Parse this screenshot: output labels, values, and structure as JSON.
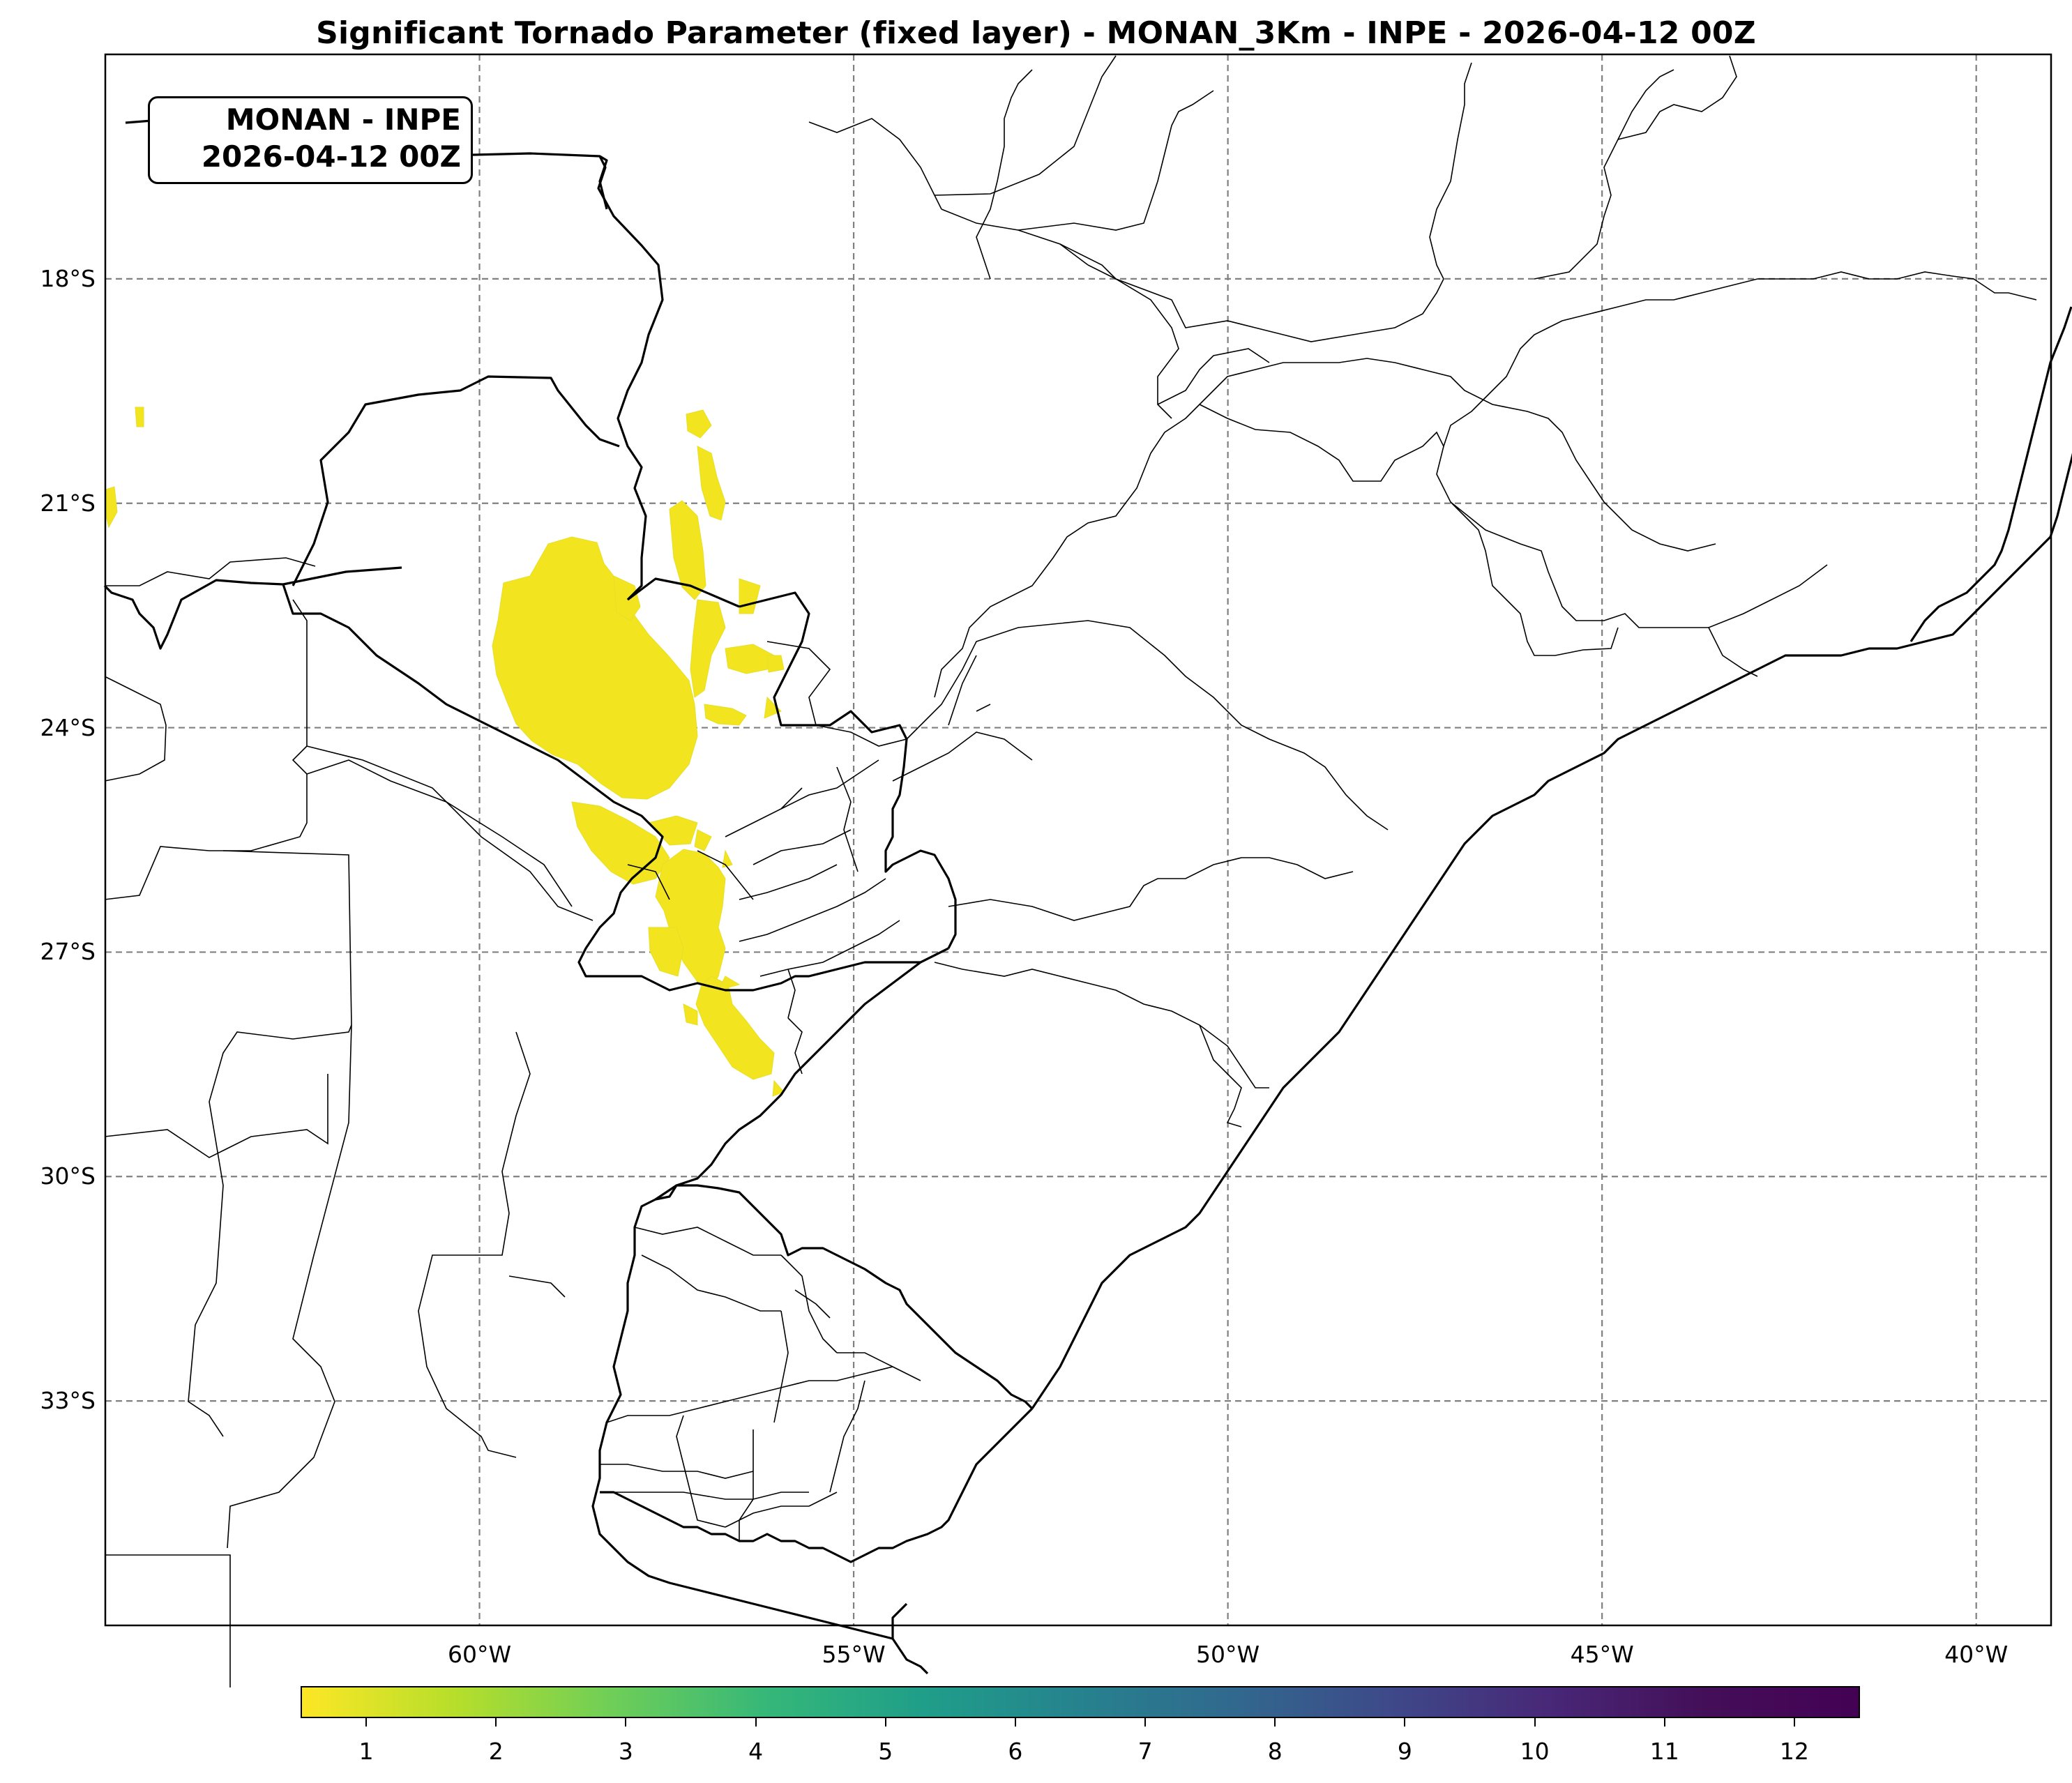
{
  "title": "Significant Tornado Parameter (fixed layer) - MONAN_3Km - INPE - 2026-04-12 00Z",
  "info_box": {
    "line1": "MONAN - INPE",
    "line2": "2026-04-12 00Z"
  },
  "map": {
    "lon_range": [
      -65.0,
      -39.0
    ],
    "lat_range": [
      -15.0,
      -36.0
    ],
    "gridlines": "dashed",
    "lat_labels": [
      "18°S",
      "21°S",
      "24°S",
      "27°S",
      "30°S",
      "33°S"
    ],
    "lat_values": [
      -18,
      -21,
      -24,
      -27,
      -30,
      -33
    ],
    "lon_labels": [
      "60°W",
      "55°W",
      "50°W",
      "45°W",
      "40°W"
    ],
    "lon_values": [
      -60,
      -55,
      -50,
      -45,
      -40
    ],
    "field_color": "#f2e41e",
    "boundary_color": "#000000"
  },
  "colorbar": {
    "colormap": "viridis_r",
    "range": [
      0.5,
      12.5
    ],
    "tick_labels": [
      "1",
      "2",
      "3",
      "4",
      "5",
      "6",
      "7",
      "8",
      "9",
      "10",
      "11",
      "12"
    ],
    "tick_values": [
      1,
      2,
      3,
      4,
      5,
      6,
      7,
      8,
      9,
      10,
      11,
      12
    ]
  }
}
